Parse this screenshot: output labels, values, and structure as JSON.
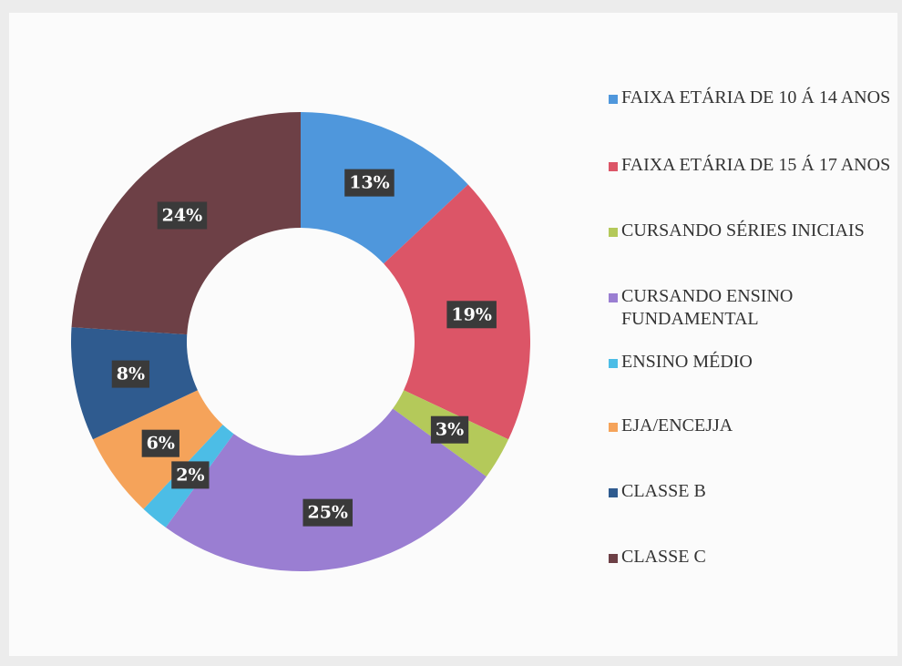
{
  "chart_data": {
    "type": "donut",
    "categories": [
      "FAIXA ETÁRIA DE 10 Á 14 ANOS",
      "FAIXA ETÁRIA DE 15 Á 17 ANOS",
      "CURSANDO SÉRIES INICIAIS",
      "CURSANDO ENSINO FUNDAMENTAL",
      "ENSINO MÉDIO",
      "EJA/ENCEJJA",
      "CLASSE B",
      "CLASSE C"
    ],
    "values": [
      13,
      19,
      3,
      25,
      2,
      6,
      8,
      24
    ],
    "value_labels": [
      "13%",
      "19%",
      "3%",
      "25%",
      "2%",
      "6%",
      "8%",
      "24%"
    ],
    "colors": [
      "#4f97dc",
      "#dc5567",
      "#b4c95a",
      "#9a7ed2",
      "#4cbde6",
      "#f5a35a",
      "#2f5b8f",
      "#6d4046"
    ],
    "legend": "right"
  }
}
